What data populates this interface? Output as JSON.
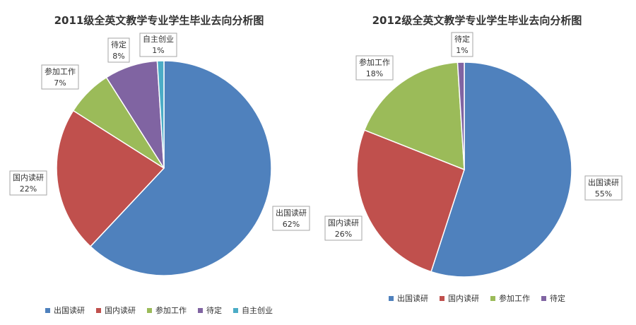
{
  "chart_data": [
    {
      "type": "pie",
      "title": "2011级全英文教学专业学生毕业去向分析图",
      "categories": [
        "出国读研",
        "国内读研",
        "参加工作",
        "待定",
        "自主创业"
      ],
      "values": [
        62,
        22,
        7,
        8,
        1
      ],
      "value_labels": [
        "62%",
        "22%",
        "7%",
        "8%",
        "1%"
      ],
      "colors": [
        "#4F81BD",
        "#C0504D",
        "#9BBB59",
        "#8064A2",
        "#4BACC6"
      ],
      "legend": {
        "position": "bottom"
      }
    },
    {
      "type": "pie",
      "title": "2012级全英文教学专业学生毕业去向分析图",
      "categories": [
        "出国读研",
        "国内读研",
        "参加工作",
        "待定"
      ],
      "values": [
        55,
        26,
        18,
        1
      ],
      "value_labels": [
        "55%",
        "26%",
        "18%",
        "1%"
      ],
      "colors": [
        "#4F81BD",
        "#C0504D",
        "#9BBB59",
        "#8064A2"
      ],
      "legend": {
        "position": "bottom"
      }
    }
  ]
}
